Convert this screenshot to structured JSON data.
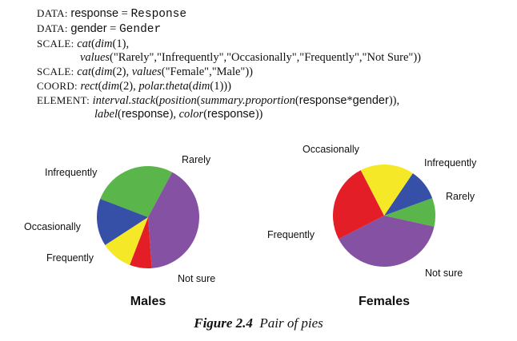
{
  "spec": {
    "line1": {
      "kw": "DATA:",
      "var": "response",
      "eq": " = ",
      "val": "Response"
    },
    "line2": {
      "kw": "DATA:",
      "var": "gender",
      "eq": " = ",
      "val": "Gender"
    },
    "line3": {
      "kw": "SCALE:",
      "fn1": "cat",
      "p1": "(",
      "fn2": "dim",
      "p2": "(1),",
      "p3": ""
    },
    "line4": {
      "fn": "values",
      "args": "(\"Rarely\",\"Infrequently\",\"Occasionally\",\"Frequently\",\"Not Sure\"))"
    },
    "line5": {
      "kw": "SCALE:",
      "fn1": "cat",
      "p1": "(",
      "fn2": "dim",
      "p2": "(2), ",
      "fn3": "values",
      "args": "(\"Female\",\"Male\"))"
    },
    "line6": {
      "kw": "COORD:",
      "fn1": "rect",
      "p1": "(",
      "fn2": "dim",
      "p2": "(2), ",
      "fn3": "polar.theta",
      "p3": "(",
      "fn4": "dim",
      "p4": "(1)))"
    },
    "line7": {
      "kw": "ELEMENT:",
      "fn1": "interval.stack",
      "p1": "(",
      "fn2": "position",
      "p2": "(",
      "fn3": "summary.proportion",
      "p3": "(",
      "v1": "response",
      "op": "*",
      "v2": "gender",
      "p4": ")),",
      "p5": ""
    },
    "line8": {
      "fn1": "label",
      "p1": "(",
      "v1": "response",
      "p2": "), ",
      "fn2": "color",
      "p3": "(",
      "v2": "response",
      "p4": "))"
    }
  },
  "caption": {
    "number": "Figure 2.4",
    "text": "Pair of pies"
  },
  "colors": {
    "Rarely": "#5ab54a",
    "Infrequently": "#3550a6",
    "Occasionally": "#f5e827",
    "Frequently": "#e41e26",
    "Not sure": "#8551a3"
  },
  "chart_data": [
    {
      "type": "pie",
      "title": "Males",
      "categories": [
        "Rarely",
        "Not sure",
        "Frequently",
        "Occasionally",
        "Infrequently"
      ],
      "values": [
        0.27,
        0.41,
        0.07,
        0.1,
        0.15
      ],
      "labels": [
        "Rarely",
        "Not sure",
        "Frequently",
        "Occasionally",
        "Infrequently"
      ]
    },
    {
      "type": "pie",
      "title": "Females",
      "categories": [
        "Infrequently",
        "Rarely",
        "Not sure",
        "Frequently",
        "Occasionally"
      ],
      "values": [
        0.1,
        0.09,
        0.39,
        0.25,
        0.17
      ],
      "labels": [
        "Infrequently",
        "Rarely",
        "Not sure",
        "Frequently",
        "Occasionally"
      ]
    }
  ]
}
